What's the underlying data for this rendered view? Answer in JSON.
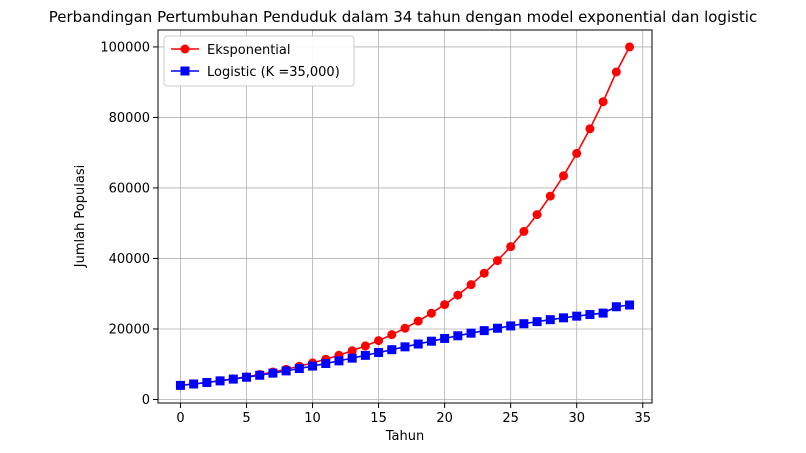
{
  "chart_data": {
    "type": "line",
    "title": "Perbandingan Pertumbuhan Penduduk dalam 34 tahun dengan model exponential dan logistic",
    "xlabel": "Tahun",
    "ylabel": "Jumlah Populasi",
    "xlim": [
      -1.7,
      35.7
    ],
    "ylim": [
      -1000,
      104800
    ],
    "xticks": [
      0,
      5,
      10,
      15,
      20,
      25,
      30,
      35
    ],
    "yticks": [
      0,
      20000,
      40000,
      60000,
      80000,
      100000
    ],
    "xtick_labels": [
      "0",
      "5",
      "10",
      "15",
      "20",
      "25",
      "30",
      "35"
    ],
    "ytick_labels": [
      "0",
      "20000",
      "40000",
      "60000",
      "80000",
      "100000"
    ],
    "grid": true,
    "legend_position": "top-left",
    "x": [
      0,
      1,
      2,
      3,
      4,
      5,
      6,
      7,
      8,
      9,
      10,
      11,
      12,
      13,
      14,
      15,
      16,
      17,
      18,
      19,
      20,
      21,
      22,
      23,
      24,
      25,
      26,
      27,
      28,
      29,
      30,
      31,
      32,
      33,
      34
    ],
    "series": [
      {
        "name": "Eksponential",
        "color": "#ff0000",
        "marker": "circle",
        "values": [
          4000,
          4400,
          4840,
          5324,
          5856,
          6442,
          7086,
          7795,
          8574,
          9432,
          10375,
          11412,
          12554,
          13809,
          15190,
          16709,
          18380,
          20218,
          22240,
          24464,
          26910,
          29601,
          32561,
          35817,
          39399,
          43339,
          47673,
          52440,
          57684,
          63452,
          69798,
          76777,
          84455,
          92901,
          100000
        ]
      },
      {
        "name": "Logistic (K =35,000)",
        "color": "#0000ff",
        "marker": "square",
        "values": [
          4000,
          4393,
          4819,
          5280,
          5776,
          6307,
          6874,
          7476,
          8112,
          8780,
          9478,
          10205,
          10956,
          11728,
          12516,
          13316,
          14122,
          14930,
          15733,
          16528,
          17309,
          18071,
          18811,
          19525,
          20211,
          20866,
          21489,
          22078,
          22633,
          23152,
          23637,
          24087,
          24503,
          26300,
          26800
        ]
      }
    ]
  }
}
